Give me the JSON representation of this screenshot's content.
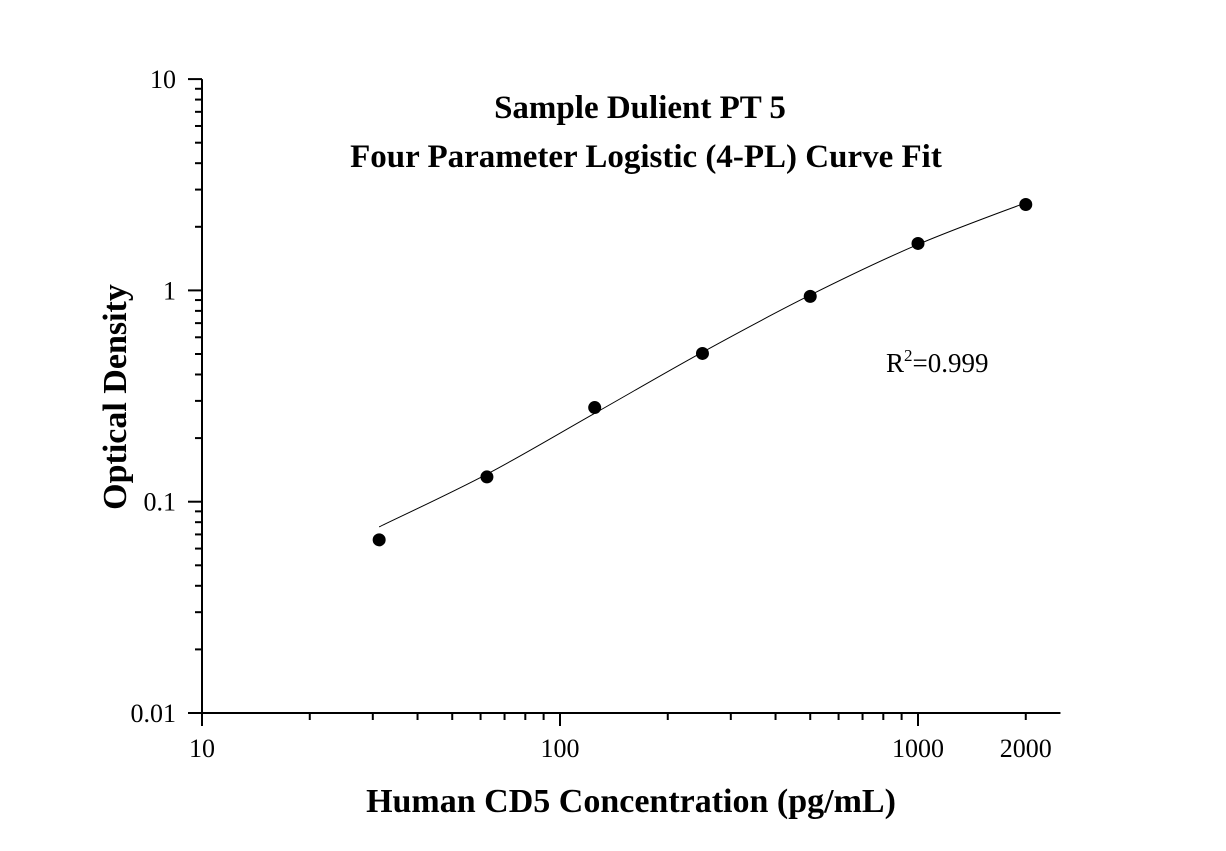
{
  "chart_data": {
    "type": "scatter",
    "title": [
      "Sample Dulient PT 5",
      "Four Parameter Logistic (4-PL) Curve Fit"
    ],
    "xlabel": "Human CD5 Concentration (pg/mL)",
    "ylabel": "Optical Density",
    "xscale": "log",
    "yscale": "log",
    "xlim": [
      10,
      2500
    ],
    "ylim": [
      0.01,
      10
    ],
    "xticks": [
      {
        "value": 10,
        "label": "10"
      },
      {
        "value": 100,
        "label": "100"
      },
      {
        "value": 1000,
        "label": "1000"
      },
      {
        "value": 2000,
        "label": "2000"
      }
    ],
    "yticks": [
      {
        "value": 0.01,
        "label": "0.01"
      },
      {
        "value": 0.1,
        "label": "0.1"
      },
      {
        "value": 1,
        "label": "1"
      },
      {
        "value": 10,
        "label": "10"
      }
    ],
    "grid": false,
    "points": {
      "x": [
        31.25,
        62.5,
        125,
        250,
        500,
        1000,
        2000
      ],
      "y": [
        0.066,
        0.131,
        0.279,
        0.503,
        0.937,
        1.668,
        2.55
      ]
    },
    "fit_curve": {
      "x": [
        31.25,
        62.5,
        125,
        250,
        500,
        1000,
        2000
      ],
      "y": [
        0.076,
        0.135,
        0.262,
        0.51,
        0.95,
        1.65,
        2.6
      ]
    },
    "annotation": {
      "text": "R",
      "sup": "2",
      "rest": "=0.999"
    }
  }
}
